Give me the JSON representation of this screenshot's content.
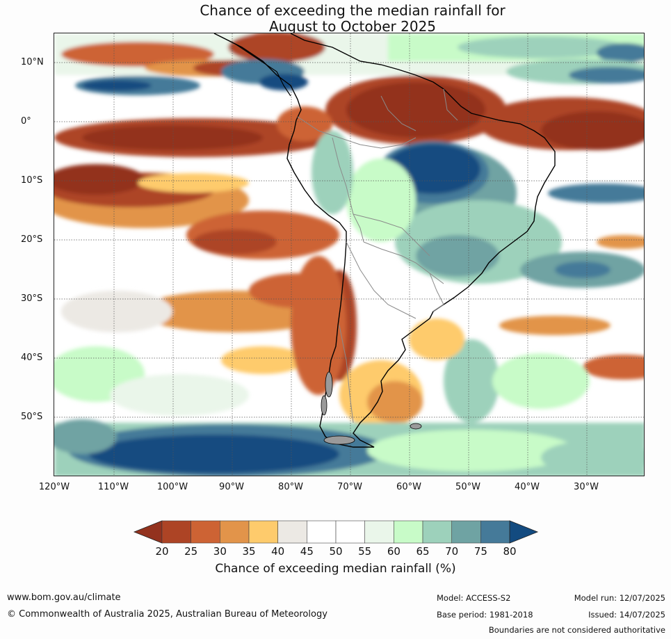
{
  "title": {
    "line1": "Chance of exceeding the median rainfall for",
    "line2": "August to October 2025"
  },
  "map": {
    "latitude_labels": [
      "10°N",
      "0°",
      "10°S",
      "20°S",
      "30°S",
      "40°S",
      "50°S"
    ],
    "longitude_labels": [
      "120°W",
      "110°W",
      "100°W",
      "90°W",
      "80°W",
      "70°W",
      "60°W",
      "50°W",
      "40°W",
      "30°W"
    ],
    "region": "South America",
    "gridlines": true
  },
  "colorbar": {
    "ticks": [
      "20",
      "25",
      "30",
      "35",
      "40",
      "45",
      "50",
      "55",
      "60",
      "65",
      "70",
      "75",
      "80"
    ],
    "colors": [
      "#93321e",
      "#ad4425",
      "#cd6334",
      "#e2944a",
      "#fecb6c",
      "#ece9e4",
      "#ffffff",
      "#ffffff",
      "#eaf6ea",
      "#c8fbc8",
      "#9dd1bb",
      "#6fa3a3",
      "#457a99",
      "#134b80"
    ],
    "title": "Chance of exceeding median rainfall (%)"
  },
  "footer": {
    "website": "www.bom.gov.au/climate",
    "copyright": "© Commonwealth of Australia 2025, Australian Bureau of Meteorology",
    "model": "Model: ACCESS-S2",
    "base_period": "Base period: 1981-2018",
    "model_run": "Model run: 12/07/2025",
    "issued": "Issued: 14/07/2025",
    "disclaimer": "Boundaries are not considered authoritative"
  }
}
